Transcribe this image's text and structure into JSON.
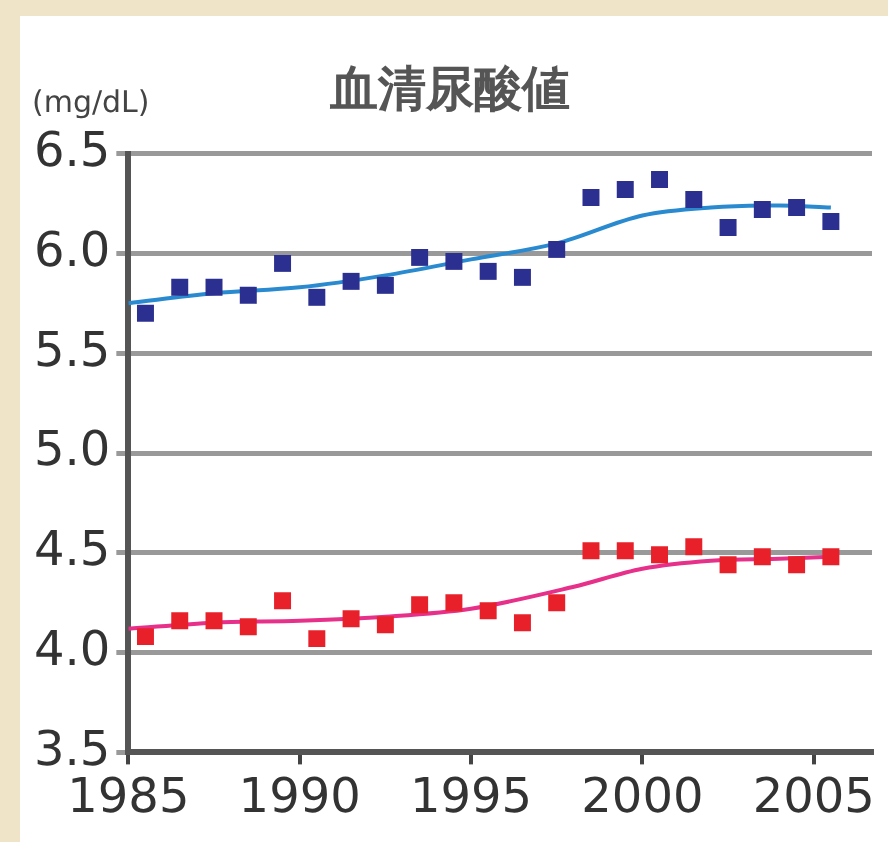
{
  "chart_data": {
    "type": "scatter",
    "title": "血清尿酸値",
    "ylabel": "(mg/dL)",
    "x": [
      1985.5,
      1986.5,
      1987.5,
      1988.5,
      1989.5,
      1990.5,
      1991.5,
      1992.5,
      1993.5,
      1994.5,
      1995.5,
      1996.5,
      1997.5,
      1998.5,
      1999.5,
      2000.5,
      2001.5,
      2002.5,
      2003.5,
      2004.5,
      2005.5
    ],
    "series": [
      {
        "color": "#2b2f8f",
        "marker": "square",
        "values": [
          5.7,
          5.83,
          5.83,
          5.79,
          5.95,
          5.78,
          5.86,
          5.84,
          5.98,
          5.96,
          5.91,
          5.88,
          6.02,
          6.28,
          6.32,
          6.37,
          6.27,
          6.13,
          6.22,
          6.23,
          6.16
        ]
      },
      {
        "color": "#e8202a",
        "marker": "square",
        "values": [
          4.08,
          4.16,
          4.16,
          4.13,
          4.26,
          4.07,
          4.17,
          4.14,
          4.24,
          4.25,
          4.21,
          4.15,
          4.25,
          4.51,
          4.51,
          4.49,
          4.53,
          4.44,
          4.48,
          4.44,
          4.48
        ]
      },
      {
        "type": "line",
        "color": "#2a8ad0",
        "x": [
          1985,
          1987.5,
          1990,
          1992.5,
          1995,
          1997.5,
          2000,
          2002,
          2004,
          2005.5
        ],
        "values": [
          5.75,
          5.8,
          5.83,
          5.89,
          5.97,
          6.05,
          6.19,
          6.23,
          6.24,
          6.23
        ]
      },
      {
        "type": "line",
        "color": "#e6308a",
        "x": [
          1985,
          1987.5,
          1990,
          1992.5,
          1995,
          1998,
          2000,
          2002,
          2004,
          2005.5
        ],
        "values": [
          4.12,
          4.15,
          4.16,
          4.18,
          4.22,
          4.33,
          4.42,
          4.46,
          4.47,
          4.48
        ]
      }
    ],
    "xlim": [
      1985,
      2006.7
    ],
    "xticks": [
      1985,
      1990,
      1995,
      2000,
      2005
    ],
    "ylim": [
      3.5,
      6.5
    ],
    "yticks": [
      {
        "value": 3.5,
        "label": "3.5"
      },
      {
        "value": 4,
        "label": "4.0"
      },
      {
        "value": 4.5,
        "label": "4.5"
      },
      {
        "value": 5,
        "label": "5.0"
      },
      {
        "value": 5.5,
        "label": "5.5"
      },
      {
        "value": 6,
        "label": "6.0"
      },
      {
        "value": 6.5,
        "label": "6.5"
      }
    ],
    "grid": "y",
    "legend": false
  }
}
